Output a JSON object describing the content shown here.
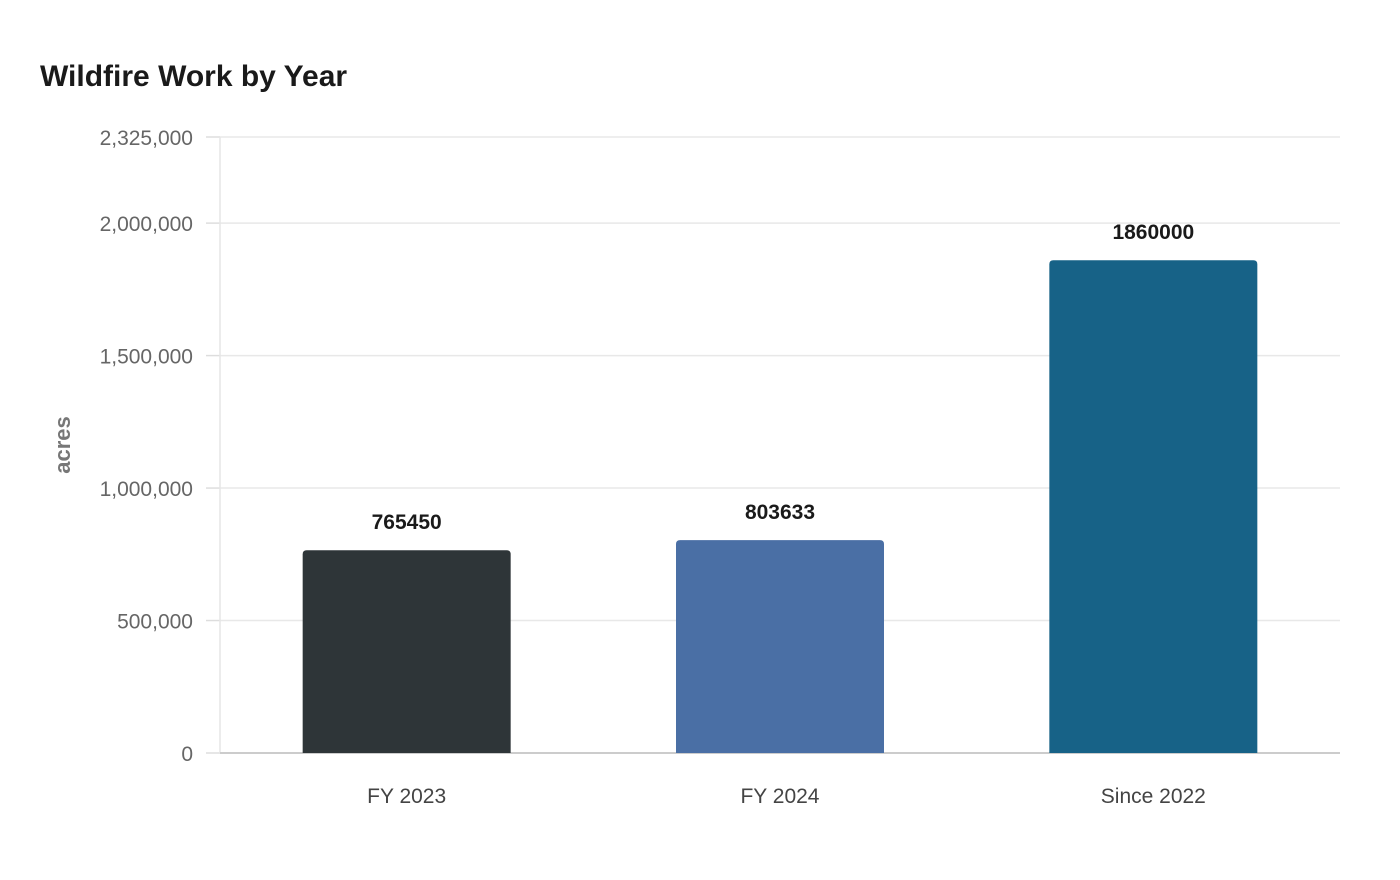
{
  "chart_data": {
    "type": "bar",
    "title": "Wildfire Work by Year",
    "xlabel": "",
    "ylabel": "acres",
    "categories": [
      "FY 2023",
      "FY 2024",
      "Since 2022"
    ],
    "values": [
      765450,
      803633,
      1860000
    ],
    "data_labels": [
      "765450",
      "803633",
      "1860000"
    ],
    "colors": [
      "#2e3538",
      "#4a6fa5",
      "#176287"
    ],
    "ylim": [
      0,
      2325000
    ],
    "yticks": [
      0,
      500000,
      1000000,
      1500000,
      2000000,
      2325000
    ],
    "ytick_labels": [
      "0",
      "500,000",
      "1,000,000",
      "1,500,000",
      "2,000,000",
      "2,325,000"
    ],
    "grid": true,
    "legend": "none"
  }
}
